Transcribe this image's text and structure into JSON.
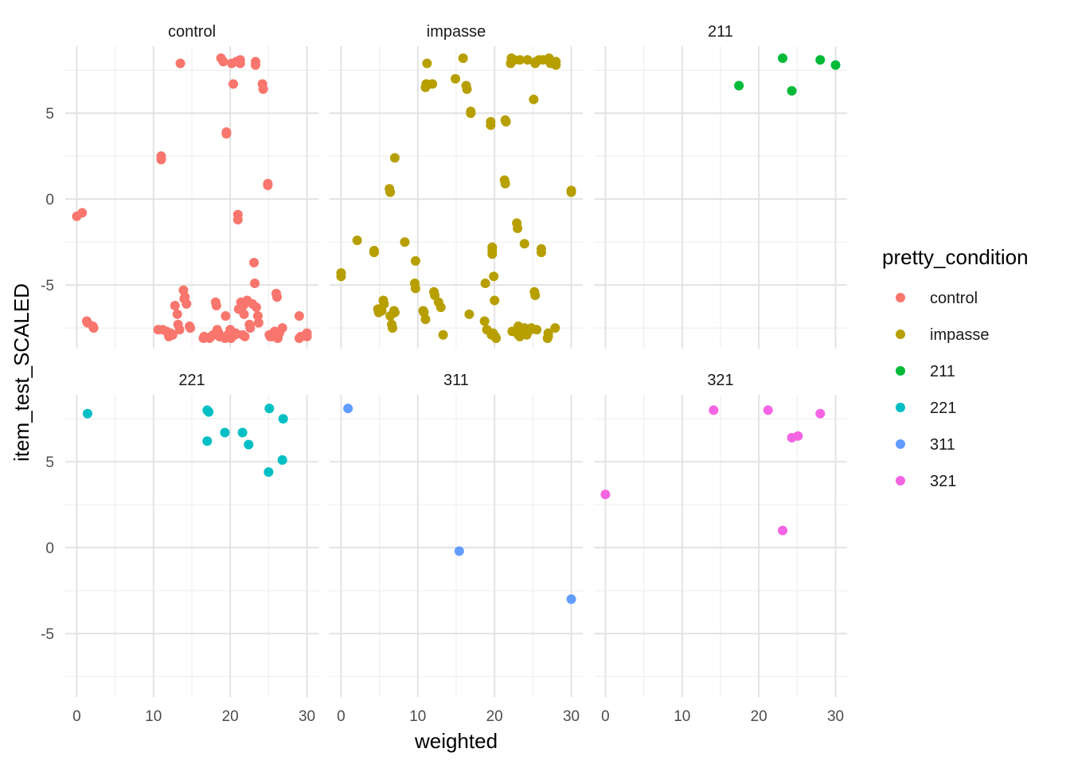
{
  "chart_data": {
    "type": "scatter",
    "xlabel": "weighted",
    "ylabel": "item_test_SCALED",
    "xlim": [
      -1.5,
      31.5
    ],
    "ylim": [
      -8.7,
      8.9
    ],
    "x_ticks": [
      0,
      10,
      20,
      30
    ],
    "y_ticks": [
      -5,
      0,
      5
    ],
    "grid": true,
    "legend": {
      "title": "pretty_condition",
      "placement": "right",
      "entries": [
        {
          "label": "control",
          "color": "#F8766D"
        },
        {
          "label": "impasse",
          "color": "#B79F00"
        },
        {
          "label": "211",
          "color": "#00BA38"
        },
        {
          "label": "221",
          "color": "#00BFC4"
        },
        {
          "label": "311",
          "color": "#619CFF"
        },
        {
          "label": "321",
          "color": "#F564E3"
        }
      ]
    },
    "panels": [
      {
        "name": "control",
        "color": "#F8766D",
        "points": [
          [
            0,
            -1
          ],
          [
            0.7,
            -0.8
          ],
          [
            1.3,
            -7.1
          ],
          [
            1.4,
            -7.2
          ],
          [
            2.1,
            -7.4
          ],
          [
            2.2,
            -7.5
          ],
          [
            10.6,
            -7.6
          ],
          [
            11,
            2.5
          ],
          [
            11,
            2.3
          ],
          [
            11.2,
            -7.6
          ],
          [
            11.7,
            -7.7
          ],
          [
            12,
            -8
          ],
          [
            12.2,
            -7.8
          ],
          [
            12.5,
            -7.9
          ],
          [
            12.8,
            -6.2
          ],
          [
            13.1,
            -6.7
          ],
          [
            13.2,
            -7.3
          ],
          [
            13.4,
            -7.6
          ],
          [
            13.5,
            7.9
          ],
          [
            13.9,
            -5.3
          ],
          [
            14,
            -5.8
          ],
          [
            14.1,
            -5.7
          ],
          [
            14.3,
            -6.1
          ],
          [
            14.7,
            -7.4
          ],
          [
            14.8,
            -7.5
          ],
          [
            16.5,
            -8.1
          ],
          [
            16.6,
            -8
          ],
          [
            17.3,
            -8.1
          ],
          [
            17.5,
            -8
          ],
          [
            17.8,
            -7.9
          ],
          [
            18.1,
            -6
          ],
          [
            18.2,
            -6.2
          ],
          [
            18.3,
            -7.6
          ],
          [
            18.5,
            -7.8
          ],
          [
            18.6,
            -8
          ],
          [
            18.8,
            8.2
          ],
          [
            19.1,
            8
          ],
          [
            19.3,
            -8.1
          ],
          [
            19.4,
            -6.8
          ],
          [
            19.5,
            3.9
          ],
          [
            19.5,
            3.8
          ],
          [
            19.7,
            -7.9
          ],
          [
            20,
            -7.6
          ],
          [
            20.1,
            -8.1
          ],
          [
            20.2,
            7.9
          ],
          [
            20.4,
            6.7
          ],
          [
            20.6,
            -7.9
          ],
          [
            20.7,
            -7.8
          ],
          [
            20.8,
            8
          ],
          [
            21,
            -0.9
          ],
          [
            21,
            -1.2
          ],
          [
            21.1,
            -6.4
          ],
          [
            21.3,
            8.1
          ],
          [
            21.3,
            7.9
          ],
          [
            21.4,
            -6
          ],
          [
            21.6,
            -7.9
          ],
          [
            21.7,
            -6.2
          ],
          [
            21.8,
            -6.7
          ],
          [
            21.9,
            -8
          ],
          [
            22.2,
            -5.9
          ],
          [
            22.5,
            -7.3
          ],
          [
            22.6,
            -7.5
          ],
          [
            22.9,
            -6.1
          ],
          [
            23.1,
            -3.7
          ],
          [
            23.2,
            -4.9
          ],
          [
            23.3,
            8
          ],
          [
            23.3,
            7.8
          ],
          [
            23.4,
            -6.3
          ],
          [
            23.6,
            -6.8
          ],
          [
            23.7,
            -7.2
          ],
          [
            24.2,
            6.7
          ],
          [
            24.3,
            6.4
          ],
          [
            24.9,
            0.9
          ],
          [
            24.9,
            0.8
          ],
          [
            25.1,
            -7.9
          ],
          [
            25.2,
            -8
          ],
          [
            25.5,
            -8
          ],
          [
            25.8,
            -7.7
          ],
          [
            26,
            -5.5
          ],
          [
            26.1,
            -5.7
          ],
          [
            26.2,
            -8.1
          ],
          [
            26.4,
            -7.8
          ],
          [
            26.8,
            -7.5
          ],
          [
            29,
            -6.8
          ],
          [
            29,
            -8.1
          ],
          [
            29.2,
            -8
          ],
          [
            30,
            -7.8
          ],
          [
            30,
            -8
          ]
        ]
      },
      {
        "name": "impasse",
        "color": "#B79F00",
        "points": [
          [
            0,
            -4.3
          ],
          [
            0,
            -4.5
          ],
          [
            2.1,
            -2.4
          ],
          [
            4.3,
            -3
          ],
          [
            4.3,
            -3.1
          ],
          [
            4.8,
            -6.4
          ],
          [
            4.9,
            -6.6
          ],
          [
            5.3,
            -6.5
          ],
          [
            5.5,
            -5.9
          ],
          [
            5.6,
            -6.1
          ],
          [
            6.3,
            0.6
          ],
          [
            6.4,
            0.4
          ],
          [
            6.4,
            -6.8
          ],
          [
            6.6,
            -7.3
          ],
          [
            6.7,
            -7.5
          ],
          [
            6.9,
            -6.5
          ],
          [
            7,
            -6.6
          ],
          [
            7,
            2.4
          ],
          [
            8.3,
            -2.5
          ],
          [
            9.7,
            -3.6
          ],
          [
            9.6,
            -4.9
          ],
          [
            9.7,
            -5.2
          ],
          [
            10.7,
            -6.5
          ],
          [
            10.8,
            -6.6
          ],
          [
            11,
            -7
          ],
          [
            11,
            6.5
          ],
          [
            11.1,
            6.7
          ],
          [
            11.2,
            7.9
          ],
          [
            11.9,
            6.7
          ],
          [
            12.1,
            -5.4
          ],
          [
            12.2,
            -5.6
          ],
          [
            12.7,
            -6
          ],
          [
            13,
            -6.3
          ],
          [
            13.3,
            -7.9
          ],
          [
            14.9,
            7
          ],
          [
            15.9,
            8.2
          ],
          [
            16.3,
            6.6
          ],
          [
            16.4,
            6.4
          ],
          [
            16.7,
            -6.7
          ],
          [
            16.9,
            5.1
          ],
          [
            16.9,
            5
          ],
          [
            18.7,
            -7.1
          ],
          [
            18.8,
            -4.9
          ],
          [
            19,
            -7.6
          ],
          [
            19.5,
            4.5
          ],
          [
            19.5,
            4.3
          ],
          [
            19.6,
            -7.9
          ],
          [
            19.7,
            -3
          ],
          [
            19.7,
            -2.8
          ],
          [
            19.7,
            -3.2
          ],
          [
            19.8,
            -7.8
          ],
          [
            19.9,
            -4.5
          ],
          [
            20,
            -5.9
          ],
          [
            20.1,
            -8
          ],
          [
            20.2,
            -8.1
          ],
          [
            21.3,
            1.1
          ],
          [
            21.4,
            0.9
          ],
          [
            21.4,
            4.6
          ],
          [
            21.5,
            4.5
          ],
          [
            22.1,
            7.9
          ],
          [
            22.2,
            8.2
          ],
          [
            22.3,
            -7.7
          ],
          [
            22.6,
            8.1
          ],
          [
            22.9,
            -1.4
          ],
          [
            23,
            -1.7
          ],
          [
            23.1,
            -7.4
          ],
          [
            23.1,
            -7.9
          ],
          [
            23.3,
            -8
          ],
          [
            23.3,
            8.1
          ],
          [
            23.9,
            -2.6
          ],
          [
            23.9,
            -7.5
          ],
          [
            23.9,
            -7.7
          ],
          [
            24.2,
            -7.9
          ],
          [
            24.3,
            8.1
          ],
          [
            24.7,
            -7.6
          ],
          [
            24.8,
            -7.5
          ],
          [
            25.1,
            5.8
          ],
          [
            25.2,
            -5.4
          ],
          [
            25.3,
            -5.6
          ],
          [
            25.3,
            7.9
          ],
          [
            25.4,
            8
          ],
          [
            25.5,
            -7.6
          ],
          [
            25.8,
            8.1
          ],
          [
            26.1,
            -2.9
          ],
          [
            26.1,
            -3.1
          ],
          [
            26.3,
            8.1
          ],
          [
            26.9,
            -8.1
          ],
          [
            27,
            -8
          ],
          [
            27,
            -7.8
          ],
          [
            27.1,
            8.2
          ],
          [
            27.3,
            7.9
          ],
          [
            27.9,
            -7.5
          ],
          [
            28,
            7.8
          ],
          [
            28,
            8
          ],
          [
            30,
            0.4
          ],
          [
            30,
            0.5
          ]
        ]
      },
      {
        "name": "211",
        "color": "#00BA38",
        "points": [
          [
            17.4,
            6.6
          ],
          [
            23.1,
            8.2
          ],
          [
            24.3,
            6.3
          ],
          [
            28,
            8.1
          ],
          [
            30,
            7.8
          ]
        ]
      },
      {
        "name": "221",
        "color": "#00BFC4",
        "points": [
          [
            1.4,
            7.8
          ],
          [
            17,
            8
          ],
          [
            17,
            6.2
          ],
          [
            17.2,
            7.9
          ],
          [
            19.3,
            6.7
          ],
          [
            21.6,
            6.7
          ],
          [
            22.4,
            6
          ],
          [
            25.1,
            8.1
          ],
          [
            25,
            4.4
          ],
          [
            26.8,
            5.1
          ],
          [
            26.9,
            7.5
          ]
        ]
      },
      {
        "name": "311",
        "color": "#619CFF",
        "points": [
          [
            0.9,
            8.1
          ],
          [
            15.4,
            -0.2
          ],
          [
            30,
            -3
          ]
        ]
      },
      {
        "name": "321",
        "color": "#F564E3",
        "points": [
          [
            0,
            3.1
          ],
          [
            14.1,
            8
          ],
          [
            21.2,
            8
          ],
          [
            23.1,
            1
          ],
          [
            24.3,
            6.4
          ],
          [
            25.1,
            6.5
          ],
          [
            28,
            7.8
          ]
        ]
      }
    ]
  }
}
